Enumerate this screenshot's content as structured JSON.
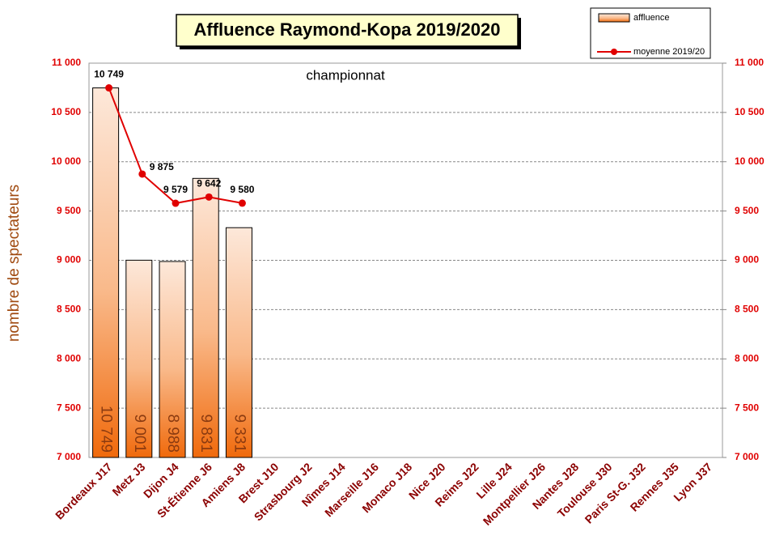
{
  "chart_data": {
    "type": "bar",
    "title": "Affluence Raymond-Kopa 2019/2020",
    "annotation": "championnat",
    "y_label": "nombre de spectateurs",
    "categories": [
      "Bordeaux J17",
      "Metz J3",
      "Dijon J4",
      "St-Étienne J6",
      "Amiens J8",
      "Brest J10",
      "Strasbourg J2",
      "Nîmes J14",
      "Marseille J16",
      "Monaco J18",
      "Nice J20",
      "Reims J22",
      "Lille J24",
      "Montpellier J26",
      "Nantes J28",
      "Toulouse J30",
      "Paris St-G. J32",
      "Rennes J35",
      "Lyon J37"
    ],
    "series": [
      {
        "name": "affluence",
        "type": "bar",
        "color": "#f07818",
        "values": [
          10749,
          9001,
          8988,
          9831,
          9331,
          null,
          null,
          null,
          null,
          null,
          null,
          null,
          null,
          null,
          null,
          null,
          null,
          null,
          null
        ],
        "value_labels": [
          "10 749",
          "9 001",
          "8 988",
          "9 831",
          "9 331",
          null,
          null,
          null,
          null,
          null,
          null,
          null,
          null,
          null,
          null,
          null,
          null,
          null,
          null
        ]
      },
      {
        "name": "moyenne 2019/20",
        "type": "line",
        "color": "#e00000",
        "values": [
          10749,
          9875,
          9579,
          9642,
          9580,
          null,
          null,
          null,
          null,
          null,
          null,
          null,
          null,
          null,
          null,
          null,
          null,
          null,
          null
        ],
        "value_labels": [
          "10 749",
          "9 875",
          "9 579",
          "9 642",
          "9 580",
          null,
          null,
          null,
          null,
          null,
          null,
          null,
          null,
          null,
          null,
          null,
          null,
          null,
          null
        ]
      }
    ],
    "ylim": [
      7000,
      11000
    ],
    "yticks": [
      {
        "value": 7000,
        "label": "7 000"
      },
      {
        "value": 7500,
        "label": "7 500"
      },
      {
        "value": 8000,
        "label": "8 000"
      },
      {
        "value": 8500,
        "label": "8 500"
      },
      {
        "value": 9000,
        "label": "9 000"
      },
      {
        "value": 9500,
        "label": "9 500"
      },
      {
        "value": 10000,
        "label": "10 000"
      },
      {
        "value": 10500,
        "label": "10 500"
      },
      {
        "value": 11000,
        "label": "11 000"
      }
    ],
    "y2lim": [
      7000,
      11000
    ],
    "y2ticks": [
      {
        "value": 7000,
        "label": "7 000"
      },
      {
        "value": 7500,
        "label": "7 500"
      },
      {
        "value": 8000,
        "label": "8 000"
      },
      {
        "value": 8500,
        "label": "8 500"
      },
      {
        "value": 9000,
        "label": "9 000"
      },
      {
        "value": 9500,
        "label": "9 500"
      },
      {
        "value": 10000,
        "label": "10 000"
      },
      {
        "value": 10500,
        "label": "10 500"
      },
      {
        "value": 11000,
        "label": "11 000"
      }
    ],
    "grid": true
  }
}
